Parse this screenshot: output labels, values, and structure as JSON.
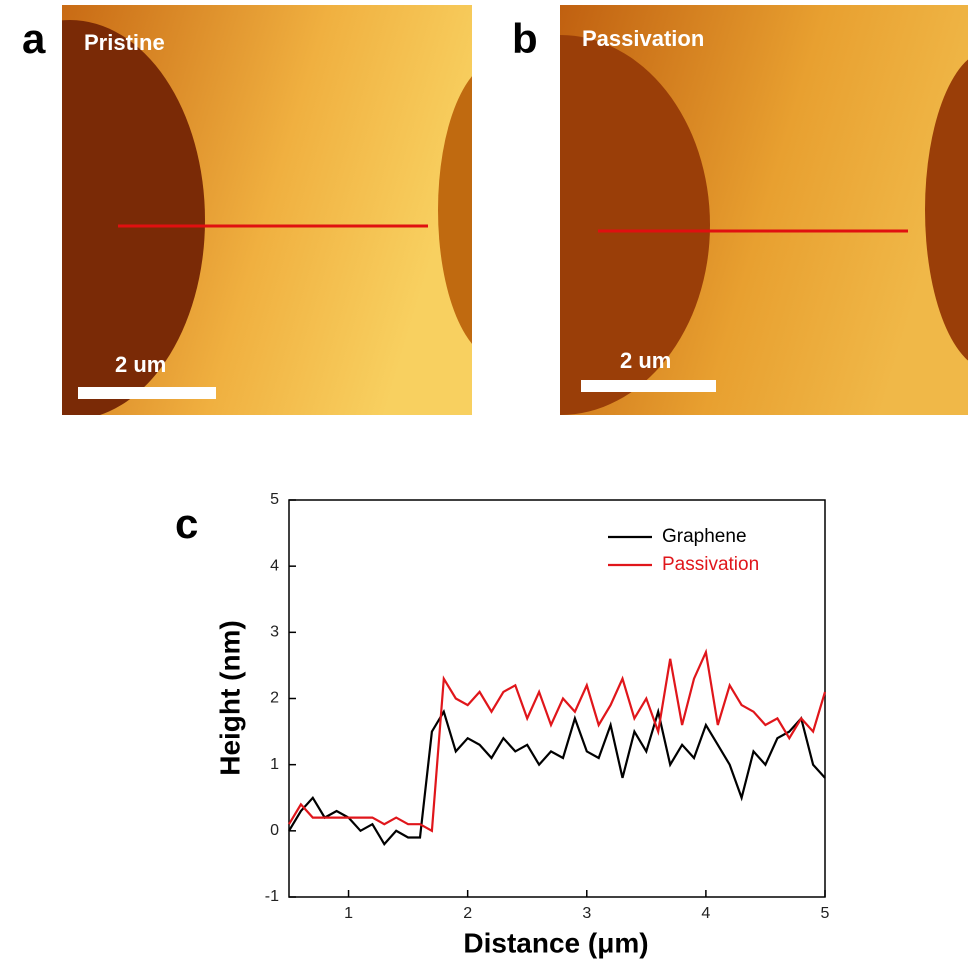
{
  "panels": [
    {
      "label": "a",
      "title": "Pristine",
      "scale_bar": "2 um"
    },
    {
      "label": "b",
      "title": "Passivation",
      "scale_bar": "2 um"
    }
  ],
  "chart_data": {
    "type": "line",
    "panel_label": "c",
    "x_label": "Distance (μm)",
    "y_label": "Height (nm)",
    "xlim": [
      0.5,
      5
    ],
    "xticks": [
      1,
      2,
      3,
      4,
      5
    ],
    "ylim": [
      -1,
      5
    ],
    "yticks": [
      -1,
      0,
      1,
      2,
      3,
      4,
      5
    ],
    "legend": "upper right",
    "x": [
      0.5,
      0.6,
      0.7,
      0.8,
      0.9,
      1.0,
      1.1,
      1.2,
      1.3,
      1.4,
      1.5,
      1.6,
      1.7,
      1.8,
      1.9,
      2.0,
      2.1,
      2.2,
      2.3,
      2.4,
      2.5,
      2.6,
      2.7,
      2.8,
      2.9,
      3.0,
      3.1,
      3.2,
      3.3,
      3.4,
      3.5,
      3.6,
      3.7,
      3.8,
      3.9,
      4.0,
      4.1,
      4.2,
      4.3,
      4.4,
      4.5,
      4.6,
      4.7,
      4.8,
      4.9,
      5.0
    ],
    "series": [
      {
        "name": "Graphene",
        "color": "#000000",
        "values": [
          0.0,
          0.3,
          0.5,
          0.2,
          0.3,
          0.2,
          0.0,
          0.1,
          -0.2,
          0.0,
          -0.1,
          -0.1,
          1.5,
          1.8,
          1.2,
          1.4,
          1.3,
          1.1,
          1.4,
          1.2,
          1.3,
          1.0,
          1.2,
          1.1,
          1.7,
          1.2,
          1.1,
          1.6,
          0.8,
          1.5,
          1.2,
          1.8,
          1.0,
          1.3,
          1.1,
          1.6,
          1.3,
          1.0,
          0.5,
          1.2,
          1.0,
          1.4,
          1.5,
          1.7,
          1.0,
          0.8
        ]
      },
      {
        "name": "Passivation",
        "color": "#e0161b",
        "values": [
          0.1,
          0.4,
          0.2,
          0.2,
          0.2,
          0.2,
          0.2,
          0.2,
          0.1,
          0.2,
          0.1,
          0.1,
          0.0,
          2.3,
          2.0,
          1.9,
          2.1,
          1.8,
          2.1,
          2.2,
          1.7,
          2.1,
          1.6,
          2.0,
          1.8,
          2.2,
          1.6,
          1.9,
          2.3,
          1.7,
          2.0,
          1.5,
          2.6,
          1.6,
          2.3,
          2.7,
          1.6,
          2.2,
          1.9,
          1.8,
          1.6,
          1.7,
          1.4,
          1.7,
          1.5,
          2.1
        ]
      }
    ]
  }
}
